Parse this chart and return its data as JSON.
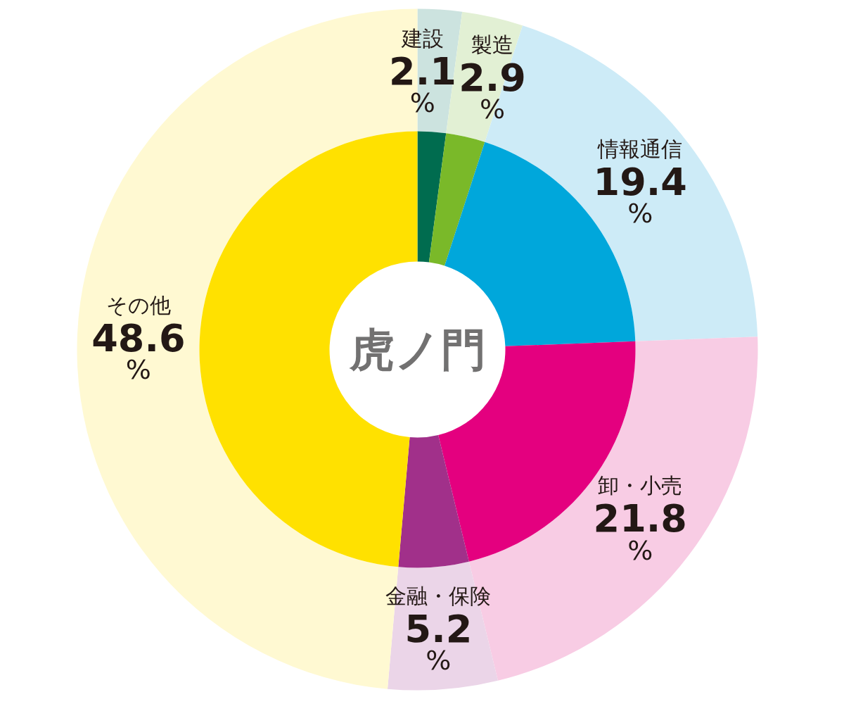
{
  "chart_data": {
    "type": "donut",
    "title": "虎ノ門",
    "categories": [
      "建設",
      "製造",
      "情報通信",
      "卸・小売",
      "金融・保険",
      "その他"
    ],
    "series": [
      {
        "values": [
          2.1,
          2.9,
          19.4,
          21.8,
          5.2,
          48.6
        ],
        "colors": [
          "#cce3df",
          "#e2f0d4",
          "#cdebf7",
          "#f8cce4",
          "#ebd5e8",
          "#fff9d2"
        ],
        "value_labels": [
          "2.1\n%",
          "2.9\n%",
          "19.4\n%",
          "21.8\n%",
          "5.2\n%",
          "48.6\n%"
        ]
      },
      {
        "values": [
          2.1,
          2.9,
          19.4,
          21.8,
          5.2,
          48.6
        ],
        "colors": [
          "#006c4f",
          "#7ab929",
          "#00a7db",
          "#e4007f",
          "#a1308a",
          "#ffe100"
        ]
      }
    ]
  }
}
